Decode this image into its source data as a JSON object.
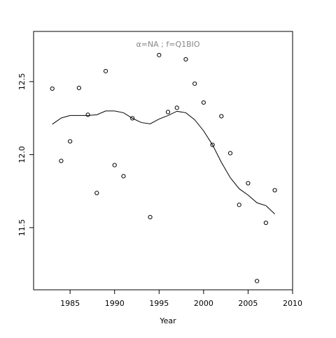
{
  "chart_data": {
    "type": "scatter",
    "title": "α=NA  ;  f=Q1BIO",
    "x_label": "Year",
    "xlim": [
      1980.9,
      2010
    ],
    "ylim": [
      11.074,
      12.844
    ],
    "xticks": [
      1985,
      1990,
      1995,
      2000,
      2005,
      2010
    ],
    "yticks": [
      11.5,
      {
        "value": 12,
        "label": "12.0"
      },
      12.5
    ],
    "series": [
      {
        "mode": "points",
        "color": "#000000",
        "x": [
          1983,
          1984,
          1985,
          1986,
          1987,
          1988,
          1989,
          1990,
          1991,
          1992,
          1994,
          1995,
          1996,
          1997,
          1998,
          1999,
          2000,
          2001,
          2002,
          2003,
          2004,
          2005,
          2006,
          2007,
          2008
        ],
        "values": [
          12.452,
          11.957,
          12.091,
          12.457,
          12.273,
          11.737,
          12.572,
          11.928,
          11.852,
          12.249,
          11.572,
          12.682,
          12.292,
          12.321,
          12.653,
          12.486,
          12.357,
          12.067,
          12.263,
          12.01,
          11.656,
          11.804,
          11.134,
          11.533,
          11.756
        ]
      },
      {
        "mode": "line",
        "color": "#000000",
        "x": [
          1983,
          1984,
          1985,
          1986,
          1987,
          1988,
          1989,
          1990,
          1991,
          1992,
          1993,
          1994,
          1995,
          1996,
          1997,
          1998,
          1999,
          2000,
          2001,
          2002,
          2003,
          2004,
          2005,
          2006,
          2007,
          2008
        ],
        "values": [
          12.208,
          12.251,
          12.268,
          12.268,
          12.268,
          12.273,
          12.299,
          12.299,
          12.287,
          12.249,
          12.22,
          12.211,
          12.244,
          12.268,
          12.297,
          12.287,
          12.239,
          12.163,
          12.067,
          11.947,
          11.842,
          11.766,
          11.723,
          11.67,
          11.651,
          11.593
        ]
      }
    ]
  }
}
